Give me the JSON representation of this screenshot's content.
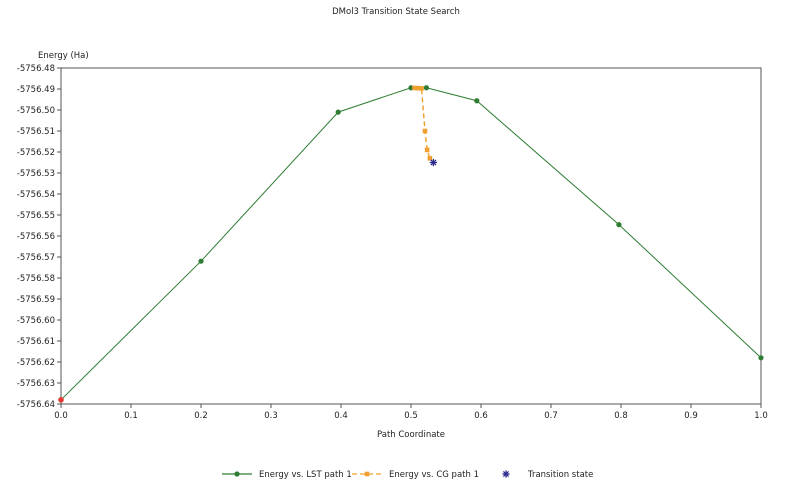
{
  "chart_data": {
    "type": "line",
    "title": "DMol3 Transition State Search",
    "xlabel": "Path Coordinate",
    "ylabel": "Energy (Ha)",
    "xlim": [
      0.0,
      1.0
    ],
    "ylim": [
      -5756.64,
      -5756.48
    ],
    "x_ticks": [
      "0.0",
      "0.1",
      "0.2",
      "0.3",
      "0.4",
      "0.5",
      "0.6",
      "0.7",
      "0.8",
      "0.9",
      "1.0"
    ],
    "y_ticks": [
      "-5756.48",
      "-5756.49",
      "-5756.50",
      "-5756.51",
      "-5756.52",
      "-5756.53",
      "-5756.54",
      "-5756.55",
      "-5756.56",
      "-5756.57",
      "-5756.58",
      "-5756.59",
      "-5756.60",
      "-5756.61",
      "-5756.62",
      "-5756.63",
      "-5756.64"
    ],
    "grid": false,
    "legend_position": "bottom",
    "series": [
      {
        "name": "Energy vs. LST path 1",
        "color": "#2e7d32",
        "style": "solid",
        "marker": "circle",
        "points": [
          [
            0.0,
            -5756.638
          ],
          [
            0.2,
            -5756.572
          ],
          [
            0.396,
            -5756.501
          ],
          [
            0.5,
            -5756.4894
          ],
          [
            0.522,
            -5756.4894
          ],
          [
            0.594,
            -5756.4956
          ],
          [
            0.797,
            -5756.5546
          ],
          [
            1.0,
            -5756.618
          ]
        ]
      },
      {
        "name": "Energy vs. CG path 1",
        "color": "#f0a030",
        "style": "dashed",
        "marker": "square",
        "points": [
          [
            0.505,
            -5756.4895
          ],
          [
            0.51,
            -5756.4896
          ],
          [
            0.515,
            -5756.4897
          ],
          [
            0.52,
            -5756.51
          ],
          [
            0.523,
            -5756.519
          ],
          [
            0.527,
            -5756.523
          ]
        ]
      },
      {
        "name": "Transition state",
        "color": "#2b2b8c",
        "style": "none",
        "marker": "star",
        "points": [
          [
            0.532,
            -5756.525
          ]
        ]
      }
    ],
    "start_point": {
      "x": 0.0,
      "y": -5756.638,
      "color": "#e53935"
    }
  }
}
